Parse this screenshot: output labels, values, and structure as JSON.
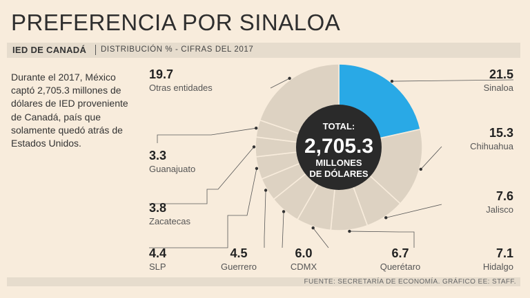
{
  "title": "PREFERENCIA POR SINALOA",
  "subtitle": {
    "label": "IED DE CANADÁ",
    "description": "DISTRIBUCIÓN % - CIFRAS DEL 2017"
  },
  "intro_text": "Durante el 2017, México captó 2,705.3 millones de dólares de IED proveniente de Canadá, país que solamente quedó atrás de Estados Unidos.",
  "center": {
    "label": "TOTAL:",
    "value": "2,705.3",
    "unit_line1": "MILLONES",
    "unit_line2": "DE DÓLARES"
  },
  "source": "FUENTE: SECRETARÍA DE ECONOMÍA. GRÁFICO EE: STAFF.",
  "colors": {
    "highlight": "#29a9e6",
    "slice": "#ddd2c2",
    "separator": "#f8ecdc",
    "center": "#2a2a2a",
    "leader": "#555555"
  },
  "chart_data": {
    "type": "pie",
    "title": "PREFERENCIA POR SINALOA",
    "subtitle": "IED DE CANADÁ | DISTRIBUCIÓN % - CIFRAS DEL 2017",
    "unit": "%",
    "slices": [
      {
        "label": "Sinaloa",
        "value": 21.5,
        "value_text": "21.5",
        "highlight": true
      },
      {
        "label": "Chihuahua",
        "value": 15.3,
        "value_text": "15.3"
      },
      {
        "label": "Jalisco",
        "value": 7.6,
        "value_text": "7.6"
      },
      {
        "label": "Hidalgo",
        "value": 7.1,
        "value_text": "7.1"
      },
      {
        "label": "Querétaro",
        "value": 6.7,
        "value_text": "6.7"
      },
      {
        "label": "CDMX",
        "value": 6.0,
        "value_text": "6.0"
      },
      {
        "label": "Guerrero",
        "value": 4.5,
        "value_text": "4.5"
      },
      {
        "label": "SLP",
        "value": 4.4,
        "value_text": "4.4"
      },
      {
        "label": "Zacatecas",
        "value": 3.8,
        "value_text": "3.8"
      },
      {
        "label": "Guanajuato",
        "value": 3.3,
        "value_text": "3.3"
      },
      {
        "label": "Otras entidades",
        "value": 19.7,
        "value_text": "19.7"
      }
    ]
  }
}
